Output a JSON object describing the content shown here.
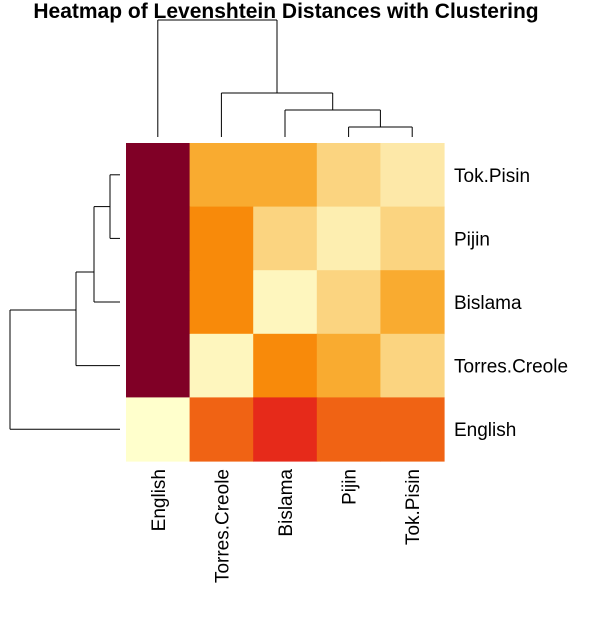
{
  "chart_data": {
    "type": "heatmap",
    "title": "Heatmap of Levenshtein Distances with Clustering",
    "xlabel": "",
    "ylabel": "",
    "col_labels": [
      "English",
      "Torres.Creole",
      "Bislama",
      "Pijin",
      "Tok.Pisin"
    ],
    "row_labels": [
      "Tok.Pisin",
      "Pijin",
      "Bislama",
      "Torres.Creole",
      "English"
    ],
    "row_order_note": "rows listed top to bottom",
    "color_scale": [
      "#800026",
      "#E31A1C",
      "#F16913",
      "#F98E09",
      "#F9B63F",
      "#FCE29E",
      "#FFFFCC"
    ],
    "value_range": [
      0,
      1
    ],
    "values": [
      [
        0.0,
        0.62,
        0.62,
        0.78,
        0.87
      ],
      [
        0.0,
        0.48,
        0.78,
        0.9,
        0.78
      ],
      [
        0.0,
        0.48,
        0.95,
        0.78,
        0.62
      ],
      [
        0.0,
        0.95,
        0.48,
        0.62,
        0.78
      ],
      [
        1.0,
        0.32,
        0.2,
        0.32,
        0.32
      ]
    ],
    "column_dendrogram": {
      "merges": [
        [
          "Pijin",
          "Tok.Pisin"
        ],
        [
          "Bislama",
          "Pijin+Tok.Pisin"
        ],
        [
          "Torres.Creole",
          "Bislama+Pijin+Tok.Pisin"
        ],
        [
          "English",
          "Torres.Creole+Bislama+Pijin+Tok.Pisin"
        ]
      ]
    },
    "row_dendrogram": {
      "merges": [
        [
          "Tok.Pisin",
          "Pijin"
        ],
        [
          "Tok.Pisin+Pijin",
          "Bislama"
        ],
        [
          "Tok.Pisin+Pijin+Bislama",
          "Torres.Creole"
        ],
        [
          "Tok.Pisin+Pijin+Bislama+Torres.Creole",
          "English"
        ]
      ]
    }
  }
}
